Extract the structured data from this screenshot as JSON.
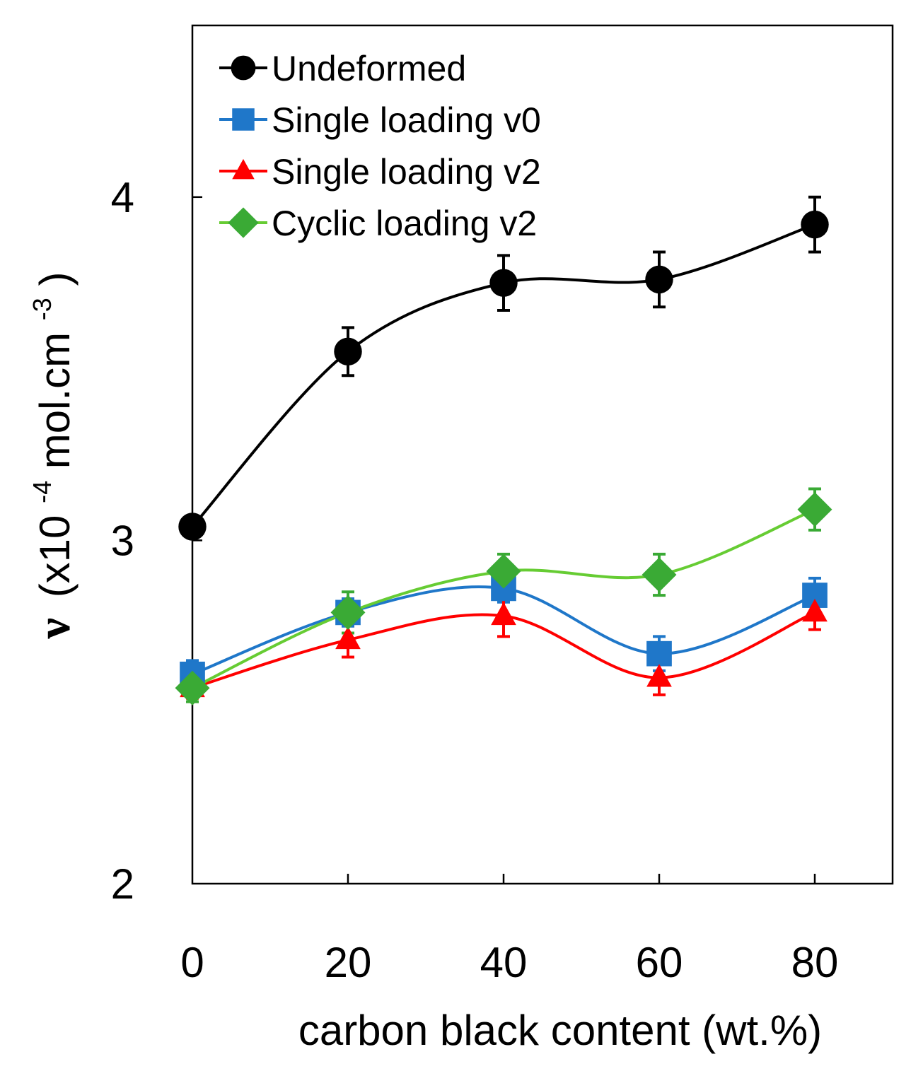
{
  "chart_data": {
    "type": "line",
    "title": "",
    "xlabel": "carbon black content (wt.%)",
    "ylabel": {
      "symbol": "ν",
      "unit_prefix": "(x10",
      "unit_exp": "-4",
      "unit_mid": " mol.cm",
      "unit_exp2": "-3",
      "unit_suffix": ")"
    },
    "x": [
      0,
      20,
      40,
      60,
      80
    ],
    "x_ticks": [
      "0",
      "20",
      "40",
      "60",
      "80"
    ],
    "xlim": [
      0,
      90
    ],
    "y_ticks": [
      "2",
      "3",
      "4"
    ],
    "ylim": [
      2,
      4.5
    ],
    "grid": false,
    "legend_position": "top-left",
    "series": [
      {
        "name": "Undeformed",
        "color": "#000000",
        "marker": "circle",
        "values": [
          3.04,
          3.55,
          3.75,
          3.76,
          3.92
        ],
        "errors": [
          0.02,
          0.07,
          0.08,
          0.08,
          0.08
        ]
      },
      {
        "name": "Single loading v0",
        "color": "#1f77c9",
        "marker": "square",
        "values": [
          2.61,
          2.79,
          2.86,
          2.67,
          2.84
        ],
        "errors": [
          0.04,
          0.04,
          0.04,
          0.05,
          0.05
        ]
      },
      {
        "name": "Single loading v2",
        "color": "#ff0000",
        "marker": "triangle",
        "values": [
          2.57,
          2.71,
          2.78,
          2.6,
          2.79
        ],
        "errors": [
          0.03,
          0.05,
          0.06,
          0.05,
          0.05
        ]
      },
      {
        "name": "Cyclic loading v2",
        "color": "#3aaa35",
        "line_color": "#66cc33",
        "marker": "diamond",
        "values": [
          2.57,
          2.79,
          2.91,
          2.9,
          3.09
        ],
        "errors": [
          0.04,
          0.06,
          0.05,
          0.06,
          0.06
        ]
      }
    ]
  }
}
